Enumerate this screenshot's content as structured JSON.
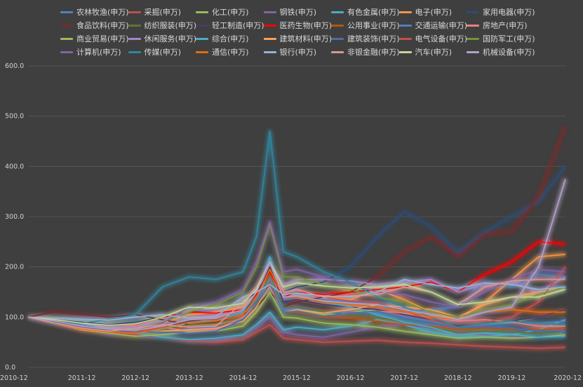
{
  "chart_data": {
    "type": "line",
    "title": "",
    "xlabel": "",
    "ylabel": "",
    "ylim": [
      0,
      600
    ],
    "yticks": [
      "0.0",
      "100.0",
      "200.0",
      "300.0",
      "400.0",
      "500.0",
      "600.0"
    ],
    "xticks": [
      "2010-12",
      "2011-12",
      "2012-12",
      "2013-12",
      "2014-12",
      "2015-12",
      "2016-12",
      "2017-12",
      "2018-12",
      "2019-12",
      "2020-12"
    ],
    "x": [
      "2010-12",
      "2011-06",
      "2011-12",
      "2012-06",
      "2012-12",
      "2013-06",
      "2013-12",
      "2014-06",
      "2014-12",
      "2015-03",
      "2015-06",
      "2015-09",
      "2015-12",
      "2016-06",
      "2016-12",
      "2017-06",
      "2017-12",
      "2018-06",
      "2018-12",
      "2019-06",
      "2019-12",
      "2020-06",
      "2020-12"
    ],
    "grid": "horizontal",
    "legend_position": "top",
    "series": [
      {
        "name": "农林牧渔(申万)",
        "color": "#4f81bd",
        "values": [
          100,
          95,
          85,
          75,
          70,
          78,
          95,
          90,
          110,
          140,
          200,
          135,
          140,
          135,
          130,
          125,
          110,
          115,
          120,
          170,
          160,
          185,
          180
        ]
      },
      {
        "name": "采掘(申万)",
        "color": "#c0504d",
        "values": [
          100,
          92,
          80,
          68,
          65,
          60,
          52,
          50,
          55,
          70,
          85,
          58,
          55,
          50,
          52,
          54,
          50,
          48,
          45,
          42,
          40,
          38,
          40
        ]
      },
      {
        "name": "化工(申万)",
        "color": "#9bbb59",
        "values": [
          100,
          95,
          82,
          72,
          68,
          72,
          80,
          82,
          95,
          120,
          170,
          110,
          115,
          105,
          110,
          115,
          105,
          95,
          80,
          85,
          90,
          100,
          115
        ]
      },
      {
        "name": "钢铁(申万)",
        "color": "#8064a2",
        "values": [
          100,
          90,
          78,
          66,
          62,
          60,
          55,
          55,
          65,
          80,
          100,
          70,
          65,
          60,
          70,
          80,
          85,
          78,
          68,
          65,
          62,
          60,
          65
        ]
      },
      {
        "name": "有色金属(申万)",
        "color": "#4bacc6",
        "values": [
          100,
          92,
          82,
          70,
          68,
          60,
          55,
          58,
          65,
          85,
          110,
          75,
          80,
          75,
          82,
          95,
          85,
          70,
          60,
          62,
          65,
          75,
          95
        ]
      },
      {
        "name": "电子(申万)",
        "color": "#f79646",
        "values": [
          100,
          90,
          78,
          72,
          72,
          88,
          105,
          110,
          120,
          150,
          210,
          140,
          150,
          140,
          135,
          155,
          135,
          110,
          95,
          130,
          175,
          220,
          225
        ]
      },
      {
        "name": "家用电器(申万)",
        "color": "#2c4d75",
        "values": [
          100,
          95,
          90,
          85,
          90,
          100,
          110,
          115,
          130,
          150,
          190,
          150,
          160,
          170,
          200,
          260,
          310,
          280,
          230,
          270,
          300,
          330,
          400
        ]
      },
      {
        "name": "食品饮料(申万)",
        "color": "#772c2a",
        "values": [
          100,
          110,
          105,
          100,
          105,
          95,
          85,
          90,
          105,
          120,
          150,
          120,
          130,
          140,
          150,
          180,
          230,
          260,
          220,
          265,
          270,
          340,
          480
        ]
      },
      {
        "name": "纺织服装(申万)",
        "color": "#5f7530",
        "values": [
          100,
          90,
          78,
          72,
          68,
          75,
          85,
          88,
          100,
          130,
          185,
          120,
          120,
          110,
          105,
          100,
          90,
          80,
          70,
          72,
          70,
          68,
          72
        ]
      },
      {
        "name": "轻工制造(申万)",
        "color": "#4d3b62",
        "values": [
          100,
          92,
          80,
          72,
          70,
          78,
          92,
          95,
          110,
          140,
          200,
          130,
          135,
          125,
          120,
          115,
          105,
          95,
          82,
          88,
          92,
          100,
          115
        ]
      },
      {
        "name": "医药生物(申万)",
        "color": "#ff0000",
        "values": [
          100,
          95,
          88,
          84,
          85,
          100,
          110,
          108,
          115,
          145,
          190,
          140,
          150,
          145,
          150,
          155,
          160,
          170,
          150,
          185,
          210,
          250,
          245
        ]
      },
      {
        "name": "公用事业(申万)",
        "color": "#b65708",
        "values": [
          100,
          92,
          80,
          72,
          70,
          75,
          80,
          82,
          95,
          120,
          170,
          110,
          110,
          100,
          98,
          92,
          85,
          82,
          75,
          78,
          76,
          75,
          78
        ]
      },
      {
        "name": "交通运输(申万)",
        "color": "#4f81bd",
        "values": [
          100,
          90,
          80,
          70,
          68,
          72,
          78,
          80,
          95,
          135,
          175,
          115,
          118,
          108,
          110,
          108,
          100,
          92,
          80,
          85,
          88,
          88,
          92
        ]
      },
      {
        "name": "房地产(申万)",
        "color": "#e6827f",
        "values": [
          100,
          92,
          80,
          75,
          82,
          80,
          72,
          75,
          100,
          125,
          160,
          110,
          112,
          102,
          108,
          112,
          108,
          100,
          92,
          95,
          90,
          82,
          82
        ]
      },
      {
        "name": "商业贸易(申万)",
        "color": "#9bbb59",
        "values": [
          100,
          88,
          75,
          68,
          62,
          65,
          70,
          72,
          82,
          110,
          150,
          100,
          98,
          88,
          85,
          80,
          72,
          65,
          58,
          60,
          58,
          60,
          65
        ]
      },
      {
        "name": "休闲服务(申万)",
        "color": "#a585c6",
        "values": [
          100,
          95,
          88,
          82,
          80,
          92,
          112,
          115,
          130,
          160,
          210,
          165,
          175,
          175,
          172,
          165,
          170,
          175,
          150,
          165,
          170,
          150,
          180
        ]
      },
      {
        "name": "综合(申万)",
        "color": "#4bacc6",
        "values": [
          100,
          90,
          80,
          72,
          68,
          76,
          90,
          95,
          110,
          150,
          220,
          140,
          140,
          130,
          120,
          105,
          90,
          80,
          65,
          68,
          65,
          60,
          62
        ]
      },
      {
        "name": "建筑材料(申万)",
        "color": "#f7a15c",
        "values": [
          100,
          88,
          75,
          70,
          70,
          72,
          75,
          78,
          92,
          120,
          165,
          110,
          115,
          108,
          115,
          125,
          120,
          115,
          100,
          125,
          140,
          150,
          160
        ]
      },
      {
        "name": "建筑装饰(申万)",
        "color": "#4a6fa5",
        "values": [
          100,
          90,
          80,
          72,
          72,
          70,
          68,
          72,
          95,
          125,
          165,
          110,
          112,
          102,
          108,
          112,
          98,
          88,
          80,
          82,
          78,
          72,
          72
        ]
      },
      {
        "name": "电气设备(申万)",
        "color": "#c0504d",
        "values": [
          100,
          92,
          80,
          70,
          70,
          80,
          95,
          95,
          115,
          150,
          210,
          145,
          150,
          140,
          132,
          128,
          112,
          95,
          80,
          90,
          100,
          130,
          200
        ]
      },
      {
        "name": "国防军工(申万)",
        "color": "#77933c",
        "values": [
          100,
          95,
          82,
          72,
          72,
          90,
          110,
          125,
          150,
          200,
          285,
          180,
          180,
          165,
          155,
          140,
          130,
          110,
          100,
          115,
          125,
          145,
          160
        ]
      },
      {
        "name": "计算机(申万)",
        "color": "#8064a2",
        "values": [
          100,
          90,
          80,
          75,
          70,
          88,
          120,
          130,
          155,
          210,
          290,
          190,
          195,
          180,
          165,
          150,
          145,
          130,
          120,
          150,
          175,
          195,
          190
        ]
      },
      {
        "name": "传媒(申万)",
        "color": "#31859c",
        "values": [
          100,
          90,
          88,
          95,
          105,
          160,
          180,
          175,
          190,
          260,
          470,
          230,
          220,
          190,
          170,
          140,
          120,
          100,
          80,
          88,
          92,
          88,
          85
        ]
      },
      {
        "name": "通信(申万)",
        "color": "#e46c0a",
        "values": [
          100,
          88,
          76,
          70,
          68,
          78,
          90,
          92,
          105,
          140,
          195,
          140,
          140,
          130,
          125,
          120,
          112,
          100,
          95,
          110,
          115,
          110,
          110
        ]
      },
      {
        "name": "银行(申万)",
        "color": "#95b3d7",
        "values": [
          100,
          98,
          96,
          94,
          100,
          105,
          98,
          102,
          140,
          150,
          165,
          145,
          148,
          142,
          140,
          150,
          175,
          165,
          158,
          168,
          165,
          155,
          160
        ]
      },
      {
        "name": "非银金融(申万)",
        "color": "#d99694",
        "values": [
          100,
          88,
          78,
          72,
          78,
          85,
          80,
          82,
          130,
          160,
          210,
          150,
          155,
          140,
          142,
          145,
          160,
          150,
          125,
          160,
          172,
          175,
          175
        ]
      },
      {
        "name": "汽车(申万)",
        "color": "#c3d69b",
        "values": [
          100,
          95,
          88,
          84,
          86,
          100,
          120,
          118,
          128,
          155,
          210,
          160,
          168,
          162,
          158,
          160,
          165,
          150,
          125,
          130,
          140,
          140,
          155
        ]
      },
      {
        "name": "机械设备(申万)",
        "color": "#b3a2c7",
        "values": [
          100,
          92,
          82,
          76,
          74,
          82,
          95,
          98,
          115,
          150,
          210,
          140,
          142,
          132,
          128,
          125,
          115,
          105,
          95,
          110,
          120,
          200,
          375
        ]
      }
    ]
  }
}
